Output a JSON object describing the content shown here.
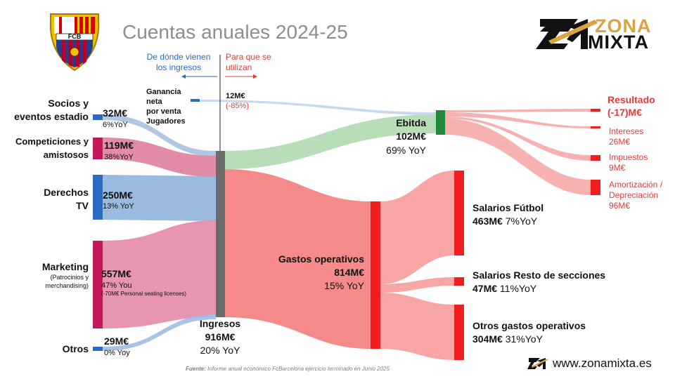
{
  "title": "Cuentas anuales 2024-25",
  "club_logo": {
    "icon": "fcb-crest-icon",
    "text": "FCB"
  },
  "brand": {
    "line1": "ZONA",
    "line2": "MIXTA",
    "icon": "zm-logo-icon"
  },
  "directions": {
    "income": {
      "text": "De dónde vienen\nlos ingresos",
      "arrow": "←",
      "color": "#2a6bc4"
    },
    "usage": {
      "text": "Para que se\nutilizan",
      "arrow": "→",
      "color": "#e23b3b"
    }
  },
  "players_sale": {
    "label": "Ganancia neta\npor venta\nJugadores",
    "value": "12M€",
    "change": "(-85%)"
  },
  "sources": [
    {
      "label": "Socios y\neventos estadio",
      "value": "32M€",
      "change": "6%YoY",
      "color": "#2a6bc4"
    },
    {
      "label": "Competiciones y\namistosos",
      "value": "119M€",
      "change": "38%YoY",
      "color": "#c2185b"
    },
    {
      "label": "Derechos\nTV",
      "value": "250M€",
      "change": "13% YoY",
      "color": "#2a6bc4"
    },
    {
      "label": "Marketing",
      "sublabel": "(Patrocinios y\nmerchandising)",
      "value": "557M€",
      "change": "47% You",
      "note": "(-70M€ Personal seating licenses)",
      "color": "#c2185b"
    },
    {
      "label": "Otros",
      "value": "29M€",
      "change": "0% Yoy",
      "color": "#2a6bc4"
    }
  ],
  "income": {
    "label": "Ingresos",
    "value": "916M€",
    "change": "20% YoY"
  },
  "ebitda": {
    "label": "Ebitda",
    "value": "102M€",
    "change": "69% YoY"
  },
  "opex": {
    "label": "Gastos operativos",
    "value": "814M€",
    "change": "15% YoY"
  },
  "ebitda_breakdown": [
    {
      "label": "Resultado",
      "value": "(-17)M€"
    },
    {
      "label": "Intereses",
      "value": "26M€"
    },
    {
      "label": "Impuestos",
      "value": "9M€"
    },
    {
      "label": "Amortización /\nDepreciación",
      "value": "96M€"
    }
  ],
  "opex_breakdown": [
    {
      "label": "Salarios Fútbol",
      "value": "463M€",
      "change": "7%YoY"
    },
    {
      "label": "Salarios Resto de secciones",
      "value": "47M€",
      "change": "11%YoY"
    },
    {
      "label": "Otros gastos operativos",
      "value": "304M€",
      "change": "31%YoY"
    }
  ],
  "source": {
    "prefix": "Fuente:",
    "text": "Informe anual económico FcBarcelona  ejercicio terminado en Junio 2025"
  },
  "website": "www.zonamixta.es",
  "colors": {
    "blue": "#2a6bc4",
    "magenta": "#c2185b",
    "gray": "#6b6b6b",
    "green": "#1e8a3a",
    "red": "#f01e1e"
  }
}
